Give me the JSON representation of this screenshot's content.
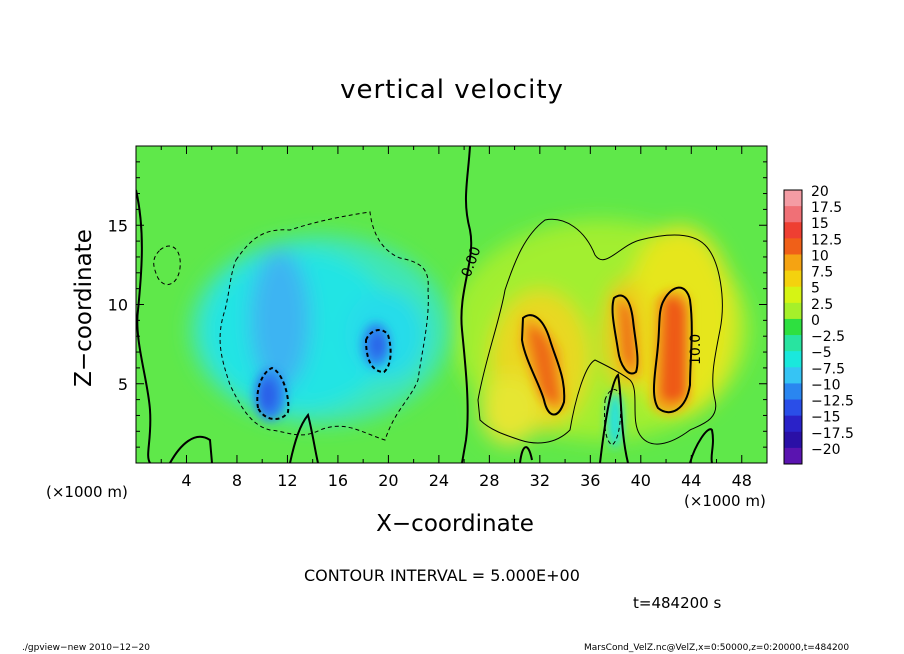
{
  "chart_data": {
    "type": "heatmap",
    "title": "vertical velocity",
    "xlabel": "X−coordinate",
    "ylabel": "Z−coordinate",
    "x_unit": "(×1000 m)",
    "y_unit": "(×1000 m)",
    "xlim": [
      0,
      50
    ],
    "ylim": [
      0,
      20
    ],
    "x_ticks": [
      "4",
      "8",
      "12",
      "16",
      "20",
      "24",
      "28",
      "32",
      "36",
      "40",
      "44",
      "48"
    ],
    "y_ticks": [
      "5",
      "10",
      "15"
    ],
    "colorbar": {
      "labels": [
        "20",
        "17.5",
        "15",
        "12.5",
        "10",
        "7.5",
        "5",
        "2.5",
        "0",
        "−2.5",
        "−5",
        "−7.5",
        "−10",
        "−12.5",
        "−15",
        "−17.5",
        "−20"
      ],
      "colors": [
        "#f49ca4",
        "#f07076",
        "#ee3f32",
        "#f06018",
        "#f5a312",
        "#f4d20e",
        "#d6f414",
        "#a6f02a",
        "#2ee040",
        "#28e4a0",
        "#1ae8dc",
        "#36c4f4",
        "#2a86f0",
        "#2a4ee8",
        "#2a22c8",
        "#2a10a6",
        "#5a14b0"
      ]
    },
    "contour_labels": [
      "0.00",
      "10.0"
    ],
    "cells": [
      {
        "x": 12,
        "z": 10,
        "w": -6
      },
      {
        "x": 11,
        "z": 5,
        "w": -12
      },
      {
        "x": 19,
        "z": 8,
        "w": -9
      },
      {
        "x": 31,
        "z": 7,
        "w": 11
      },
      {
        "x": 38,
        "z": 8,
        "w": 11
      },
      {
        "x": 42,
        "z": 8,
        "w": 13
      },
      {
        "x": 37,
        "z": 3,
        "w": -5
      }
    ]
  },
  "annotations": {
    "contour_interval": "CONTOUR INTERVAL = 5.000E+00",
    "time": "t=484200 s",
    "footer_left": "./gpview−new  2010−12−20",
    "footer_right": "MarsCond_VelZ.nc@VelZ,x=0:50000,z=0:20000,t=484200"
  }
}
